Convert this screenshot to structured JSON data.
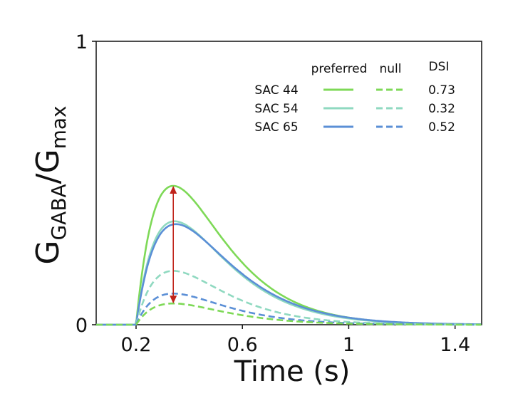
{
  "chart_data": {
    "type": "line",
    "xlabel": "Time (s)",
    "ylabel": {
      "main": "G",
      "sub1": "GABA",
      "sep": "/G",
      "sub2": "max"
    },
    "xlim": [
      0.05,
      1.5
    ],
    "ylim": [
      0,
      1
    ],
    "x_ticks": [
      0.2,
      0.6,
      1.0,
      1.4
    ],
    "x_tick_labels": [
      "0.2",
      "0.6",
      "1",
      "1.4"
    ],
    "y_ticks": [
      0,
      1
    ],
    "y_tick_labels": [
      "0",
      "1"
    ],
    "onset": 0.2,
    "grid": false,
    "legend": {
      "placement": "top-right",
      "col_preferred": "preferred",
      "col_null": "null",
      "col_dsi": "DSI",
      "rows": [
        {
          "label": "SAC 44",
          "color": "#7ed957",
          "dsi": "0.73"
        },
        {
          "label": "SAC 54",
          "color": "#8fd9c0",
          "dsi": "0.32"
        },
        {
          "label": "SAC 65",
          "color": "#5b8fd6",
          "dsi": "0.52"
        }
      ]
    },
    "series": [
      {
        "key": "sac44_pref",
        "color": "#7ed957",
        "dash": "solid",
        "peak": 0.49,
        "peak_time": 0.34
      },
      {
        "key": "sac54_pref",
        "color": "#8fd9c0",
        "dash": "solid",
        "peak": 0.365,
        "peak_time": 0.345
      },
      {
        "key": "sac65_pref",
        "color": "#5b8fd6",
        "dash": "solid",
        "peak": 0.355,
        "peak_time": 0.35
      },
      {
        "key": "sac54_null",
        "color": "#8fd9c0",
        "dash": "dashed",
        "peak": 0.19,
        "peak_time": 0.34
      },
      {
        "key": "sac65_null",
        "color": "#5b8fd6",
        "dash": "dashed",
        "peak": 0.11,
        "peak_time": 0.34
      },
      {
        "key": "sac44_null",
        "color": "#7ed957",
        "dash": "dashed",
        "peak": 0.075,
        "peak_time": 0.34
      }
    ],
    "annotation": {
      "type": "double-arrow",
      "color": "#c0241b",
      "x": 0.34,
      "y_top": 0.49,
      "y_bottom": 0.075
    }
  }
}
